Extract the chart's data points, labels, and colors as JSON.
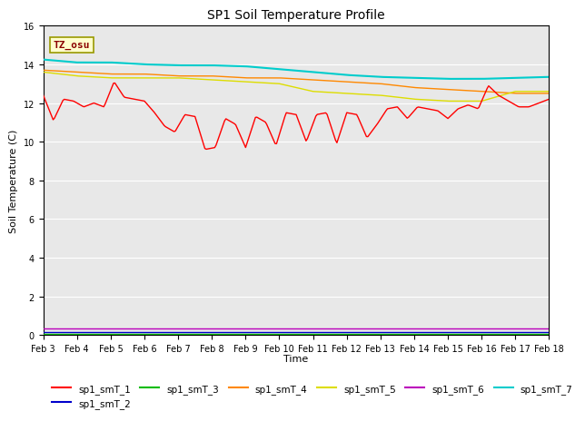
{
  "title": "SP1 Soil Temperature Profile",
  "xlabel": "Time",
  "ylabel": "Soil Temperature (C)",
  "ylim": [
    0,
    16
  ],
  "yticks": [
    0,
    2,
    4,
    6,
    8,
    10,
    12,
    14,
    16
  ],
  "xtick_labels": [
    "Feb 3",
    "Feb 4",
    "Feb 5",
    "Feb 6",
    "Feb 7",
    "Feb 8",
    "Feb 9",
    "Feb 10",
    "Feb 11",
    "Feb 12",
    "Feb 13",
    "Feb 14",
    "Feb 15",
    "Feb 16",
    "Feb 17",
    "Feb 18"
  ],
  "annotation_text": "TZ_osu",
  "colors": {
    "sp1_smT_1": "#ff0000",
    "sp1_smT_2": "#0000cc",
    "sp1_smT_3": "#00bb00",
    "sp1_smT_4": "#ff8800",
    "sp1_smT_5": "#dddd00",
    "sp1_smT_6": "#bb00bb",
    "sp1_smT_7": "#00cccc"
  },
  "bg_color": "#e8e8e8",
  "legend_labels": [
    "sp1_smT_1",
    "sp1_smT_2",
    "sp1_smT_3",
    "sp1_smT_4",
    "sp1_smT_5",
    "sp1_smT_6",
    "sp1_smT_7"
  ],
  "series": {
    "sp1_smT_1": {
      "base_values": [
        12.4,
        11.1,
        12.2,
        12.1,
        11.8,
        12.0,
        11.8,
        13.1,
        12.3,
        12.2,
        12.1,
        11.5,
        10.8,
        10.5,
        11.4,
        11.3,
        9.6,
        9.7,
        11.2,
        10.9,
        9.7,
        11.3,
        11.0,
        9.8,
        11.5,
        11.4,
        10.0,
        11.4,
        11.5,
        9.9,
        11.5,
        11.4,
        10.2,
        10.9,
        11.7,
        11.8,
        11.2,
        11.8,
        11.7,
        11.6,
        11.2,
        11.7,
        11.9,
        11.7,
        12.9,
        12.4,
        12.1,
        11.8,
        11.8,
        12.0,
        12.2
      ]
    },
    "sp1_smT_2": {
      "constant": 0.15
    },
    "sp1_smT_3": {
      "constant": 0.05
    },
    "sp1_smT_4": {
      "x": [
        0,
        1,
        2,
        3,
        4,
        5,
        6,
        7,
        8,
        9,
        10,
        11,
        12,
        13,
        14,
        15
      ],
      "y": [
        13.7,
        13.6,
        13.5,
        13.5,
        13.4,
        13.4,
        13.3,
        13.3,
        13.2,
        13.1,
        13.0,
        12.8,
        12.7,
        12.6,
        12.5,
        12.5
      ]
    },
    "sp1_smT_5": {
      "x": [
        0,
        1,
        2,
        3,
        4,
        5,
        6,
        7,
        8,
        9,
        10,
        11,
        12,
        13,
        14,
        15
      ],
      "y": [
        13.6,
        13.4,
        13.3,
        13.3,
        13.3,
        13.2,
        13.1,
        13.0,
        12.6,
        12.5,
        12.4,
        12.2,
        12.1,
        12.1,
        12.6,
        12.6
      ]
    },
    "sp1_smT_6": {
      "constant": 0.35
    },
    "sp1_smT_7": {
      "x": [
        0,
        1,
        2,
        3,
        4,
        5,
        6,
        7,
        8,
        9,
        10,
        11,
        12,
        13,
        14,
        15
      ],
      "y": [
        14.25,
        14.1,
        14.1,
        14.0,
        13.95,
        13.95,
        13.9,
        13.75,
        13.6,
        13.45,
        13.35,
        13.3,
        13.25,
        13.25,
        13.3,
        13.35
      ]
    }
  }
}
